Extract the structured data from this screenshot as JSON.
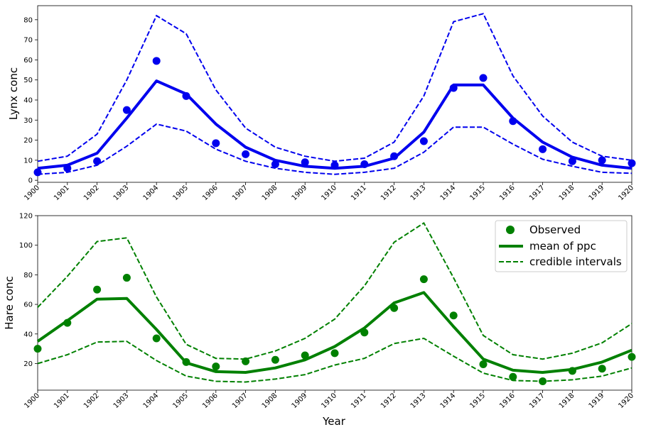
{
  "chart_data": [
    {
      "type": "line",
      "ylabel": "Lynx conc",
      "xlabel": "",
      "ylim": [
        -1,
        87
      ],
      "yticks": [
        0,
        10,
        20,
        30,
        40,
        50,
        60,
        70,
        80
      ],
      "x": [
        "1900",
        "1901",
        "1902",
        "1903",
        "1904",
        "1905",
        "1906",
        "1907",
        "1908",
        "1909",
        "1910",
        "1911",
        "1912",
        "1913",
        "1914",
        "1915",
        "1916",
        "1917",
        "1918",
        "1919",
        "1920"
      ],
      "color": "#0000ee",
      "legend": false,
      "observed": [
        4,
        6,
        9.5,
        35,
        59.5,
        42,
        18.5,
        13,
        8,
        9,
        7.5,
        8,
        12,
        19.5,
        46,
        51,
        29.5,
        15.5,
        9.5,
        10,
        8.5
      ],
      "mean": [
        6,
        7.5,
        13.5,
        31,
        49.5,
        43,
        28,
        16.5,
        10,
        7,
        6,
        7,
        11,
        24,
        47.5,
        47.5,
        31,
        19,
        11.5,
        7.5,
        6
      ],
      "upper": [
        9.5,
        12,
        23,
        50,
        82,
        73,
        45,
        26,
        16.5,
        12,
        9.5,
        11,
        19,
        42,
        79,
        83,
        52,
        32,
        19,
        12,
        10
      ],
      "lower": [
        3,
        4,
        7.5,
        17,
        28,
        24.5,
        15.5,
        9.5,
        6,
        4,
        3,
        4,
        6,
        14,
        26.5,
        26.5,
        18,
        10.5,
        7,
        4,
        3.5
      ]
    },
    {
      "type": "line",
      "ylabel": "Hare conc",
      "xlabel": "Year",
      "ylim": [
        2,
        120
      ],
      "yticks": [
        20,
        40,
        60,
        80,
        100,
        120
      ],
      "x": [
        "1900",
        "1901",
        "1902",
        "1903",
        "1904",
        "1905",
        "1906",
        "1907",
        "1908",
        "1909",
        "1910",
        "1911",
        "1912",
        "1913",
        "1914",
        "1915",
        "1916",
        "1917",
        "1918",
        "1919",
        "1920"
      ],
      "color": "#008000",
      "legend": true,
      "legend_loc": "upper right",
      "legend_entries": [
        "Observed",
        "mean of ppc",
        "credible intervals"
      ],
      "observed": [
        30,
        47.5,
        70,
        78,
        37,
        21,
        18,
        21.5,
        22.5,
        25.5,
        27,
        41,
        57.5,
        77,
        52.5,
        19.5,
        11,
        8,
        15,
        16.5,
        24.5
      ],
      "mean": [
        35,
        49,
        63.5,
        64,
        43,
        20.5,
        14.5,
        14,
        17,
        22.5,
        31.5,
        44,
        61,
        68,
        45,
        23,
        15.5,
        14,
        16,
        21,
        29
      ],
      "upper": [
        58,
        79,
        102.5,
        105,
        65,
        33,
        23.5,
        23,
        28.5,
        37,
        50,
        72.5,
        102,
        115,
        78,
        39,
        26,
        23,
        27,
        34,
        47
      ],
      "lower": [
        20,
        26,
        34.5,
        35,
        22,
        11.5,
        8,
        7.5,
        9.5,
        12.5,
        19,
        23.5,
        33.5,
        37,
        25,
        13.5,
        8.5,
        8,
        9,
        11.5,
        17
      ]
    }
  ]
}
